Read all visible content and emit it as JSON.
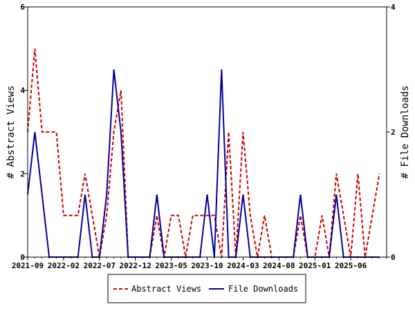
{
  "chart_data": {
    "type": "line",
    "x_ticks": [
      "2021-09",
      "2022-02",
      "2022-07",
      "2022-12",
      "2023-05",
      "2023-10",
      "2024-03",
      "2024-08",
      "2025-01",
      "2025-06"
    ],
    "x_range": [
      "2021-09",
      "2025-11"
    ],
    "x": [
      "2021-09",
      "2021-10",
      "2021-11",
      "2021-12",
      "2022-01",
      "2022-02",
      "2022-03",
      "2022-04",
      "2022-05",
      "2022-06",
      "2022-07",
      "2022-08",
      "2022-09",
      "2022-10",
      "2022-11",
      "2022-12",
      "2023-01",
      "2023-02",
      "2023-03",
      "2023-04",
      "2023-05",
      "2023-06",
      "2023-07",
      "2023-08",
      "2023-09",
      "2023-10",
      "2023-11",
      "2023-12",
      "2024-01",
      "2024-02",
      "2024-03",
      "2024-04",
      "2024-05",
      "2024-06",
      "2024-07",
      "2024-08",
      "2024-09",
      "2024-10",
      "2024-11",
      "2024-12",
      "2025-01",
      "2025-02",
      "2025-03",
      "2025-04",
      "2025-05",
      "2025-06",
      "2025-07",
      "2025-08",
      "2025-09",
      "2025-10",
      "2025-11"
    ],
    "ylabel": "# Abstract Views",
    "y2label": "# File Downloads",
    "ylim": [
      0,
      6
    ],
    "y_ticks": [
      "0",
      "2",
      "4",
      "6"
    ],
    "y2lim": [
      0,
      4
    ],
    "y2_ticks": [
      "0",
      "2",
      "4"
    ],
    "series": [
      {
        "name": "Abstract Views",
        "axis": "left",
        "color": "#cc0000",
        "style": "dashed",
        "values": [
          3,
          5,
          3,
          3,
          3,
          1,
          1,
          1,
          2,
          1,
          0,
          1,
          3,
          4,
          0,
          0,
          0,
          0,
          1,
          0,
          1,
          1,
          0,
          1,
          1,
          1,
          1,
          0,
          3,
          0,
          3,
          1,
          0,
          1,
          0,
          0,
          0,
          0,
          1,
          0,
          0,
          1,
          0,
          2,
          1,
          0,
          2,
          0,
          1,
          2,
          null
        ]
      },
      {
        "name": "File Downloads",
        "axis": "right",
        "color": "#000099",
        "style": "solid",
        "values": [
          1,
          2,
          1,
          0,
          0,
          0,
          0,
          0,
          1,
          0,
          0,
          1,
          3,
          2,
          0,
          0,
          0,
          0,
          1,
          0,
          0,
          0,
          0,
          0,
          0,
          1,
          0,
          3,
          0,
          0,
          1,
          0,
          0,
          0,
          0,
          0,
          0,
          0,
          1,
          0,
          0,
          0,
          0,
          1,
          0,
          0,
          0,
          0,
          0,
          0,
          null
        ]
      }
    ],
    "legend": {
      "position": "bottom",
      "entries": [
        "Abstract Views",
        "File Downloads"
      ]
    },
    "grid": false
  }
}
